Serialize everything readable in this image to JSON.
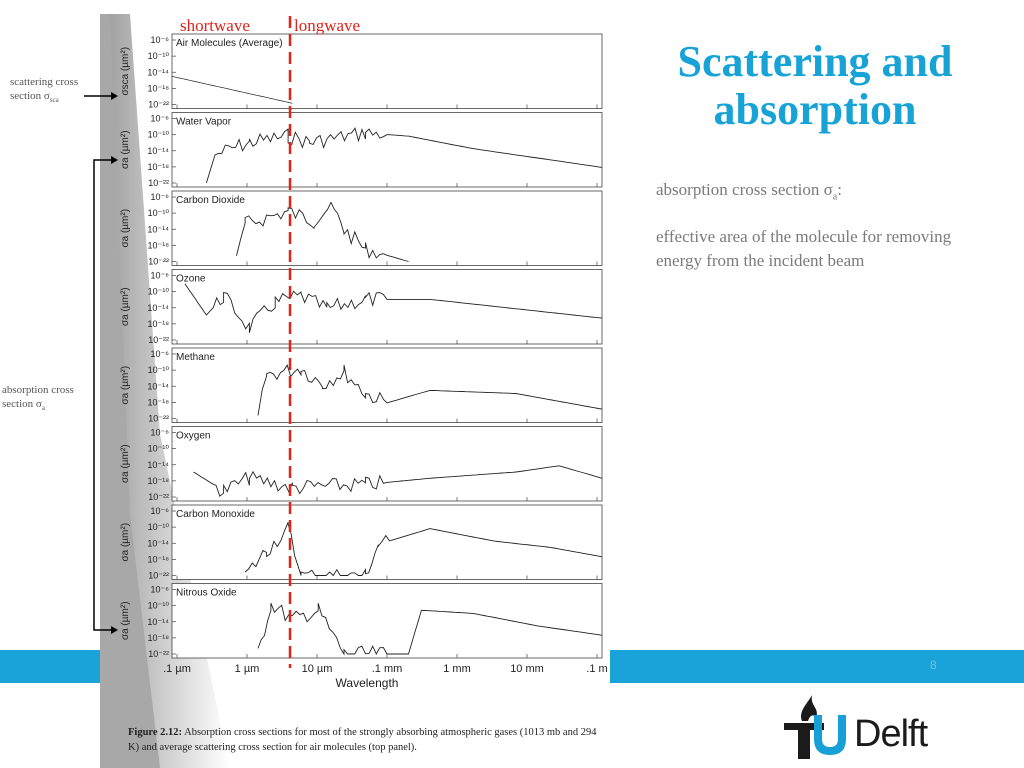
{
  "slide": {
    "title_line1": "Scattering and",
    "title_line2": "absorption",
    "description_term": "absorption cross section σ",
    "description_term_sub": "a",
    "description_term_suffix": ":",
    "description_definition": "effective area of the molecule for removing energy from the incident beam",
    "page_number": "8",
    "logo_text": "Delft",
    "logo_letter": "T"
  },
  "annotations": {
    "scattering_label": "scattering cross section σ",
    "scattering_sub": "sca",
    "absorption_label": "absorption cross section σ",
    "absorption_sub": "a",
    "shortwave": "shortwave",
    "longwave": "longwave"
  },
  "caption": {
    "label": "Figure 2.12:",
    "text": " Absorption cross sections for most of the strongly absorbing atmospheric gases (1013 mb and 294 K) and average scattering cross section for air molecules (top panel)."
  },
  "colors": {
    "accent": "#1aa3d8",
    "title": "#18a3d7",
    "divider": "#e3221b"
  },
  "chart_data": {
    "type": "line",
    "xlabel": "Wavelength",
    "x_ticks": [
      ".1 µm",
      "1 µm",
      "10 µm",
      ".1 mm",
      "1 mm",
      "10 mm",
      ".1 m"
    ],
    "x_scale": "log",
    "y_scale": "log",
    "y_ticks": [
      "10⁻⁶",
      "10⁻¹⁰",
      "10⁻¹⁴",
      "10⁻¹⁸",
      "10⁻²²"
    ],
    "divider_wavelength": "4 µm",
    "panels": [
      {
        "name": "Air Molecules (Average)",
        "ylabel": "σsca (µm²)"
      },
      {
        "name": "Water Vapor",
        "ylabel": "σa (µm²)"
      },
      {
        "name": "Carbon Dioxide",
        "ylabel": "σa (µm²)"
      },
      {
        "name": "Ozone",
        "ylabel": "σa (µm²)"
      },
      {
        "name": "Methane",
        "ylabel": "σa (µm²)"
      },
      {
        "name": "Oxygen",
        "ylabel": "σa (µm²)"
      },
      {
        "name": "Carbon Monoxide",
        "ylabel": "σa (µm²)"
      },
      {
        "name": "Nitrous Oxide",
        "ylabel": "σa (µm²)"
      }
    ]
  }
}
